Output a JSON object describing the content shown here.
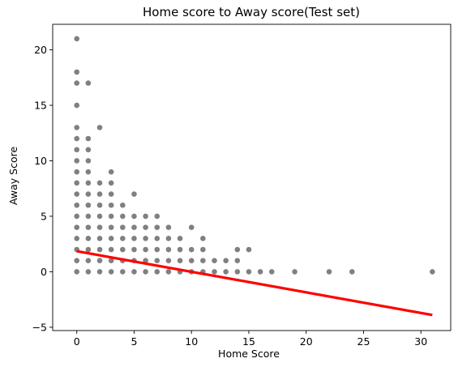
{
  "chart_data": {
    "type": "scatter",
    "title": "Home score to Away score(Test set)",
    "xlabel": "Home Score",
    "ylabel": "Away Score",
    "xlim": [
      -2.1,
      32.6
    ],
    "ylim": [
      -5.3,
      22.3
    ],
    "xticks": [
      0,
      5,
      10,
      15,
      20,
      25,
      30
    ],
    "yticks": [
      -5,
      0,
      5,
      10,
      15,
      20
    ],
    "grid": false,
    "point_color": "#808080",
    "line_color": "#ff0000",
    "points": [
      [
        0,
        21
      ],
      [
        0,
        18
      ],
      [
        0,
        17
      ],
      [
        0,
        15
      ],
      [
        0,
        13
      ],
      [
        0,
        12
      ],
      [
        0,
        11
      ],
      [
        0,
        10
      ],
      [
        0,
        9
      ],
      [
        0,
        8
      ],
      [
        0,
        7
      ],
      [
        0,
        6
      ],
      [
        0,
        5
      ],
      [
        0,
        4
      ],
      [
        0,
        3
      ],
      [
        0,
        2
      ],
      [
        0,
        1
      ],
      [
        0,
        0
      ],
      [
        1,
        17
      ],
      [
        1,
        12
      ],
      [
        1,
        11
      ],
      [
        1,
        10
      ],
      [
        1,
        9
      ],
      [
        1,
        8
      ],
      [
        1,
        7
      ],
      [
        1,
        6
      ],
      [
        1,
        5
      ],
      [
        1,
        4
      ],
      [
        1,
        3
      ],
      [
        1,
        2
      ],
      [
        1,
        1
      ],
      [
        1,
        0
      ],
      [
        2,
        13
      ],
      [
        2,
        8
      ],
      [
        2,
        7
      ],
      [
        2,
        6
      ],
      [
        2,
        5
      ],
      [
        2,
        4
      ],
      [
        2,
        3
      ],
      [
        2,
        2
      ],
      [
        2,
        1
      ],
      [
        2,
        0
      ],
      [
        3,
        9
      ],
      [
        3,
        8
      ],
      [
        3,
        7
      ],
      [
        3,
        6
      ],
      [
        3,
        5
      ],
      [
        3,
        4
      ],
      [
        3,
        3
      ],
      [
        3,
        2
      ],
      [
        3,
        1
      ],
      [
        3,
        0
      ],
      [
        4,
        6
      ],
      [
        4,
        5
      ],
      [
        4,
        4
      ],
      [
        4,
        3
      ],
      [
        4,
        2
      ],
      [
        4,
        1
      ],
      [
        4,
        0
      ],
      [
        5,
        7
      ],
      [
        5,
        5
      ],
      [
        5,
        4
      ],
      [
        5,
        3
      ],
      [
        5,
        2
      ],
      [
        5,
        1
      ],
      [
        5,
        0
      ],
      [
        6,
        5
      ],
      [
        6,
        4
      ],
      [
        6,
        3
      ],
      [
        6,
        2
      ],
      [
        6,
        1
      ],
      [
        6,
        0
      ],
      [
        7,
        5
      ],
      [
        7,
        4
      ],
      [
        7,
        3
      ],
      [
        7,
        2
      ],
      [
        7,
        1
      ],
      [
        7,
        0
      ],
      [
        8,
        4
      ],
      [
        8,
        3
      ],
      [
        8,
        2
      ],
      [
        8,
        1
      ],
      [
        8,
        0
      ],
      [
        9,
        3
      ],
      [
        9,
        2
      ],
      [
        9,
        1
      ],
      [
        9,
        0
      ],
      [
        10,
        4
      ],
      [
        10,
        2
      ],
      [
        10,
        1
      ],
      [
        10,
        0
      ],
      [
        11,
        3
      ],
      [
        11,
        2
      ],
      [
        11,
        1
      ],
      [
        11,
        0
      ],
      [
        12,
        1
      ],
      [
        12,
        0
      ],
      [
        13,
        1
      ],
      [
        13,
        0
      ],
      [
        14,
        2
      ],
      [
        14,
        1
      ],
      [
        14,
        0
      ],
      [
        15,
        2
      ],
      [
        15,
        0
      ],
      [
        16,
        0
      ],
      [
        17,
        0
      ],
      [
        19,
        0
      ],
      [
        22,
        0
      ],
      [
        24,
        0
      ],
      [
        31,
        0
      ]
    ],
    "regression_line": {
      "x": [
        0,
        31
      ],
      "y": [
        1.85,
        -3.9
      ]
    }
  }
}
